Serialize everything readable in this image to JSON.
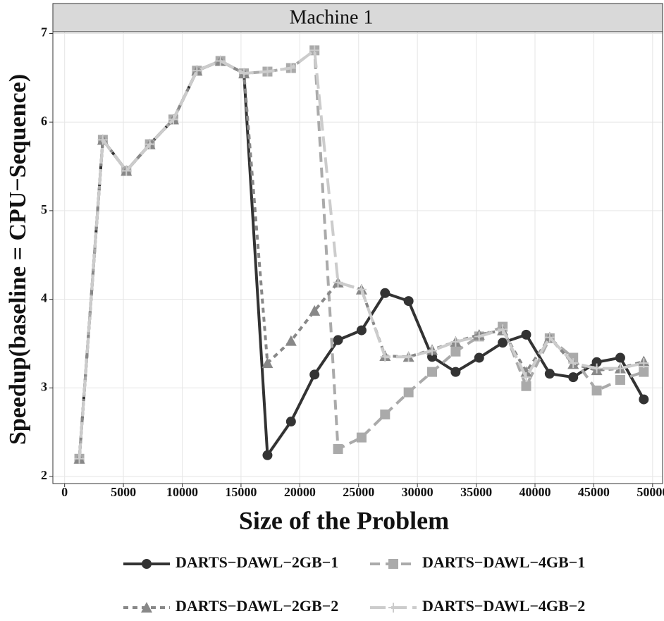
{
  "chart_data": {
    "type": "line",
    "strip_title": "Machine 1",
    "x_label": "Size of the Problem",
    "y_label": "Speedup(baseline = CPU−Sequence)",
    "x": [
      1250,
      3250,
      5250,
      7250,
      9250,
      11250,
      13250,
      15250,
      17250,
      19250,
      21250,
      23250,
      25250,
      27250,
      29250,
      31250,
      33250,
      35250,
      37250,
      39250,
      41250,
      43250,
      45250,
      47250,
      49250
    ],
    "series": [
      {
        "name": "DARTS−DAWL−2GB−1",
        "color": "#333333",
        "dash": "solid",
        "marker": "circle",
        "values": [
          2.2,
          5.8,
          5.45,
          5.75,
          6.03,
          6.58,
          6.69,
          6.55,
          2.24,
          2.62,
          3.15,
          3.54,
          3.65,
          4.07,
          3.98,
          3.35,
          3.18,
          3.34,
          3.51,
          3.6,
          3.16,
          3.12,
          3.29,
          3.34,
          2.87
        ]
      },
      {
        "name": "DARTS−DAWL−4GB−1",
        "color": "#aaaaaa",
        "dash": "dashed",
        "marker": "square",
        "values": [
          2.2,
          5.8,
          5.45,
          5.75,
          6.03,
          6.58,
          6.69,
          6.55,
          6.57,
          6.61,
          6.81,
          2.31,
          2.44,
          2.7,
          2.95,
          3.18,
          3.41,
          3.58,
          3.69,
          3.02,
          3.56,
          3.34,
          2.97,
          3.09,
          3.18
        ]
      },
      {
        "name": "DARTS−DAWL−2GB−2",
        "color": "#888888",
        "dash": "dotted",
        "marker": "triangle",
        "values": [
          2.2,
          5.8,
          5.45,
          5.75,
          6.03,
          6.58,
          6.69,
          6.55,
          3.28,
          3.53,
          3.87,
          4.19,
          4.11,
          3.36,
          3.35,
          3.43,
          3.52,
          3.6,
          3.65,
          3.18,
          3.57,
          3.27,
          3.2,
          3.22,
          3.3
        ]
      },
      {
        "name": "DARTS−DAWL−4GB−2",
        "color": "#cccccc",
        "dash": "longdash",
        "marker": "plus",
        "values": [
          2.2,
          5.8,
          5.45,
          5.75,
          6.03,
          6.58,
          6.69,
          6.55,
          6.57,
          6.61,
          6.81,
          4.19,
          4.11,
          3.35,
          3.35,
          3.42,
          3.52,
          3.58,
          3.66,
          3.12,
          3.57,
          3.28,
          3.22,
          3.22,
          3.28
        ]
      }
    ],
    "xlim": [
      -1000,
      50850
    ],
    "ylim": [
      1.92,
      7.02
    ],
    "xticks": [
      0,
      5000,
      10000,
      15000,
      20000,
      25000,
      30000,
      35000,
      40000,
      45000,
      50000
    ],
    "yticks": [
      2,
      3,
      4,
      5,
      6,
      7
    ],
    "grid": true,
    "legend": "bottom"
  }
}
